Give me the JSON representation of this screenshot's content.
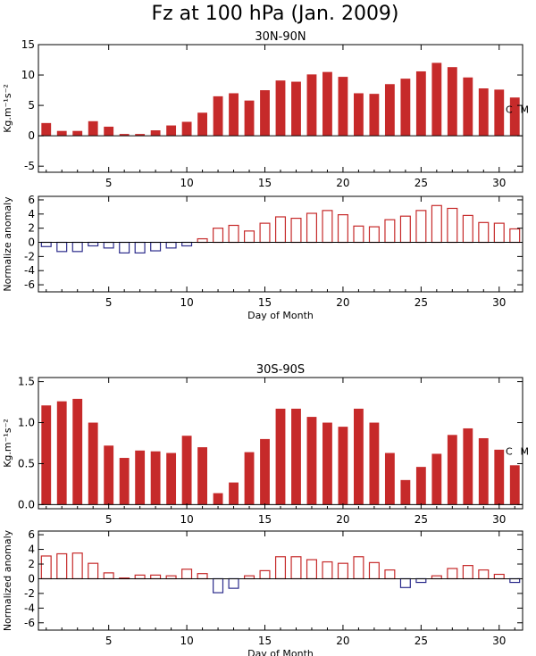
{
  "page": {
    "title": "Fz at 100 hPa (Jan. 2009)"
  },
  "colors": {
    "filled": "#c62a2a",
    "positive": "#c62a2a",
    "negative": "#2c2c8c",
    "axis": "#000000"
  },
  "chart_data": [
    {
      "id": "nh_flux",
      "type": "bar",
      "style": "filled",
      "title": "30N-90N",
      "ylabel": "Kg.m⁻¹s⁻²",
      "xlabel": "",
      "annotation": "C  M",
      "ylim": [
        -6,
        15
      ],
      "yticks": [
        -5,
        0,
        5,
        10,
        15
      ],
      "xlim": [
        0.5,
        31.5
      ],
      "xticks": [
        5,
        10,
        15,
        20,
        25,
        30
      ],
      "x": [
        1,
        2,
        3,
        4,
        5,
        6,
        7,
        8,
        9,
        10,
        11,
        12,
        13,
        14,
        15,
        16,
        17,
        18,
        19,
        20,
        21,
        22,
        23,
        24,
        25,
        26,
        27,
        28,
        29,
        30,
        31
      ],
      "values": [
        2.1,
        0.8,
        0.8,
        2.4,
        1.5,
        0.3,
        0.3,
        0.9,
        1.7,
        2.3,
        3.8,
        6.5,
        7.0,
        5.8,
        7.5,
        9.1,
        8.9,
        10.1,
        10.5,
        9.7,
        7.0,
        6.9,
        8.5,
        9.4,
        10.6,
        12.0,
        11.3,
        9.6,
        7.8,
        7.6,
        6.3
      ]
    },
    {
      "id": "nh_anomaly",
      "type": "bar",
      "style": "outline",
      "title": "",
      "ylabel": "Normalize anomaly",
      "xlabel": "Day of Month",
      "ylim": [
        -7,
        6.5
      ],
      "yticks": [
        -6,
        -4,
        -2,
        0,
        2,
        4,
        6
      ],
      "xlim": [
        0.5,
        31.5
      ],
      "xticks": [
        5,
        10,
        15,
        20,
        25,
        30
      ],
      "x": [
        1,
        2,
        3,
        4,
        5,
        6,
        7,
        8,
        9,
        10,
        11,
        12,
        13,
        14,
        15,
        16,
        17,
        18,
        19,
        20,
        21,
        22,
        23,
        24,
        25,
        26,
        27,
        28,
        29,
        30,
        31
      ],
      "values": [
        -0.6,
        -1.3,
        -1.3,
        -0.5,
        -0.8,
        -1.5,
        -1.5,
        -1.2,
        -0.8,
        -0.5,
        0.5,
        2.0,
        2.4,
        1.6,
        2.7,
        3.6,
        3.4,
        4.1,
        4.5,
        3.9,
        2.3,
        2.2,
        3.2,
        3.7,
        4.5,
        5.2,
        4.8,
        3.8,
        2.8,
        2.7,
        1.9
      ]
    },
    {
      "id": "sh_flux",
      "type": "bar",
      "style": "filled",
      "title": "30S-90S",
      "ylabel": "Kg.m⁻¹s⁻²",
      "xlabel": "",
      "annotation": "C  M",
      "ylim": [
        -0.05,
        1.55
      ],
      "yticks": [
        0.0,
        0.5,
        1.0,
        1.5
      ],
      "ytick_labels": [
        "0.0",
        "0.5",
        "1.0",
        "1.5"
      ],
      "xlim": [
        0.5,
        31.5
      ],
      "xticks": [
        5,
        10,
        15,
        20,
        25,
        30
      ],
      "x": [
        1,
        2,
        3,
        4,
        5,
        6,
        7,
        8,
        9,
        10,
        11,
        12,
        13,
        14,
        15,
        16,
        17,
        18,
        19,
        20,
        21,
        22,
        23,
        24,
        25,
        26,
        27,
        28,
        29,
        30,
        31
      ],
      "values": [
        1.21,
        1.26,
        1.29,
        1.0,
        0.72,
        0.57,
        0.66,
        0.65,
        0.63,
        0.84,
        0.7,
        0.14,
        0.27,
        0.64,
        0.8,
        1.17,
        1.17,
        1.07,
        1.0,
        0.95,
        1.17,
        1.0,
        0.63,
        0.3,
        0.46,
        0.62,
        0.85,
        0.93,
        0.81,
        0.67,
        0.48
      ]
    },
    {
      "id": "sh_anomaly",
      "type": "bar",
      "style": "outline",
      "title": "",
      "ylabel": "Normalized anomaly",
      "xlabel": "Day of Month",
      "ylim": [
        -7,
        6.5
      ],
      "yticks": [
        -6,
        -4,
        -2,
        0,
        2,
        4,
        6
      ],
      "xlim": [
        0.5,
        31.5
      ],
      "xticks": [
        5,
        10,
        15,
        20,
        25,
        30
      ],
      "x": [
        1,
        2,
        3,
        4,
        5,
        6,
        7,
        8,
        9,
        10,
        11,
        12,
        13,
        14,
        15,
        16,
        17,
        18,
        19,
        20,
        21,
        22,
        23,
        24,
        25,
        26,
        27,
        28,
        29,
        30,
        31
      ],
      "values": [
        3.1,
        3.4,
        3.5,
        2.1,
        0.8,
        0.1,
        0.5,
        0.5,
        0.4,
        1.3,
        0.7,
        -1.9,
        -1.3,
        0.4,
        1.1,
        3.0,
        3.0,
        2.6,
        2.3,
        2.1,
        3.0,
        2.2,
        1.2,
        -1.2,
        -0.5,
        0.4,
        1.4,
        1.8,
        1.2,
        0.6,
        -0.5
      ]
    }
  ]
}
